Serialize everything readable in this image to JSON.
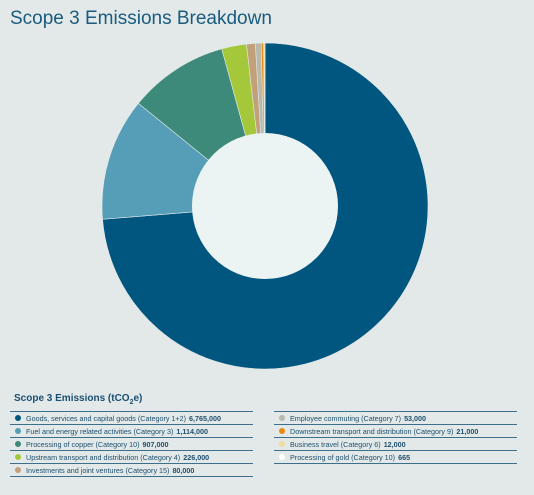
{
  "chart_data": {
    "type": "pie",
    "title": "Scope 3 Emissions Breakdown",
    "legend_title": "Scope 3 Emissions (tCO2e)",
    "legend_placement": "bottom",
    "slices": [
      {
        "label": "Goods, services and capital goods (Category 1+2)",
        "value_text": "6,765,000",
        "value": 6765000,
        "color": "#00567f"
      },
      {
        "label": "Fuel and energy related activities (Category 3)",
        "value_text": "1,114,000",
        "value": 1114000,
        "color": "#569eb8"
      },
      {
        "label": "Processing of copper (Category 10)",
        "value_text": "907,000",
        "value": 907000,
        "color": "#3d8a7a"
      },
      {
        "label": "Upstream transport and distribution (Category 4)",
        "value_text": "226,000",
        "value": 226000,
        "color": "#a5c83a"
      },
      {
        "label": "Investments and joint ventures (Category 15)",
        "value_text": "80,000",
        "value": 80000,
        "color": "#c2a07a"
      },
      {
        "label": "Employee commuting (Category 7)",
        "value_text": "53,000",
        "value": 53000,
        "color": "#b8b8ab"
      },
      {
        "label": "Downstream transport and distribution (Category 9)",
        "value_text": "21,000",
        "value": 21000,
        "color": "#e98b10"
      },
      {
        "label": "Business travel (Category 6)",
        "value_text": "12,000",
        "value": 12000,
        "color": "#f1dc9e"
      },
      {
        "label": "Processing of gold (Category 10)",
        "value_text": "665",
        "value": 665,
        "color": "#ffffff"
      }
    ]
  }
}
